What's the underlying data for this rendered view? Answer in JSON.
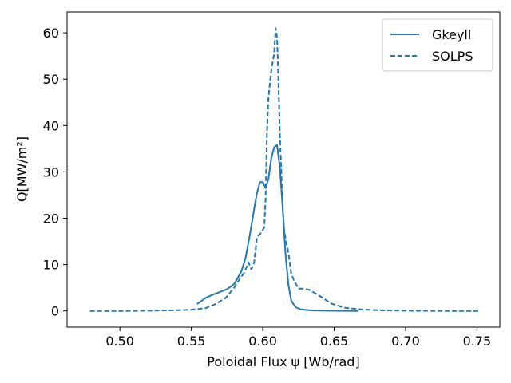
{
  "chart_data": {
    "type": "line",
    "title": "",
    "xlabel": "Poloidal Flux ψ [Wb/rad]",
    "ylabel": "Q[MW/m²]",
    "xlim": [
      0.463,
      0.766
    ],
    "ylim": [
      -3.5,
      64.5
    ],
    "xticks": [
      0.5,
      0.55,
      0.6,
      0.65,
      0.7,
      0.75
    ],
    "xtick_labels": [
      "0.50",
      "0.55",
      "0.60",
      "0.65",
      "0.70",
      "0.75"
    ],
    "yticks": [
      0,
      10,
      20,
      30,
      40,
      50,
      60
    ],
    "ytick_labels": [
      "0",
      "10",
      "20",
      "30",
      "40",
      "50",
      "60"
    ],
    "grid": false,
    "legend_position": "top-right",
    "colors": {
      "series": "#1f77b4",
      "axes": "#000000",
      "background": "#ffffff"
    },
    "series": [
      {
        "name": "Gkeyll",
        "style": "solid",
        "x": [
          0.554,
          0.56,
          0.565,
          0.57,
          0.575,
          0.58,
          0.585,
          0.588,
          0.591,
          0.594,
          0.596,
          0.598,
          0.6,
          0.602,
          0.604,
          0.606,
          0.608,
          0.61,
          0.612,
          0.614,
          0.616,
          0.618,
          0.62,
          0.623,
          0.627,
          0.635,
          0.645,
          0.667
        ],
        "y": [
          1.5,
          2.8,
          3.5,
          4.1,
          4.7,
          5.8,
          8.5,
          11.5,
          16.5,
          22.0,
          25.5,
          27.8,
          27.8,
          26.5,
          28.5,
          33.0,
          35.3,
          35.8,
          31.0,
          22.0,
          12.0,
          5.5,
          2.2,
          0.8,
          0.3,
          0.1,
          0.05,
          0.0
        ]
      },
      {
        "name": "SOLPS",
        "style": "dashed",
        "x": [
          0.479,
          0.5,
          0.52,
          0.54,
          0.55,
          0.56,
          0.567,
          0.574,
          0.58,
          0.584,
          0.587,
          0.59,
          0.592,
          0.594,
          0.596,
          0.598,
          0.6,
          0.601,
          0.602,
          0.603,
          0.604,
          0.606,
          0.608,
          0.609,
          0.61,
          0.611,
          0.612,
          0.613,
          0.614,
          0.615,
          0.616,
          0.618,
          0.62,
          0.622,
          0.625,
          0.628,
          0.633,
          0.64,
          0.648,
          0.657,
          0.667,
          0.68,
          0.7,
          0.73,
          0.752
        ],
        "y": [
          0.0,
          0.0,
          0.05,
          0.15,
          0.25,
          0.6,
          1.5,
          2.8,
          5.0,
          7.0,
          8.2,
          10.5,
          9.0,
          10.5,
          16.0,
          16.5,
          17.5,
          18.0,
          24.0,
          38.5,
          46.0,
          52.0,
          55.5,
          61.0,
          59.0,
          50.0,
          38.0,
          30.0,
          22.0,
          17.5,
          15.5,
          12.5,
          8.0,
          6.5,
          4.8,
          4.8,
          4.5,
          3.2,
          1.6,
          0.7,
          0.35,
          0.15,
          0.05,
          0.0,
          0.0
        ]
      }
    ]
  }
}
